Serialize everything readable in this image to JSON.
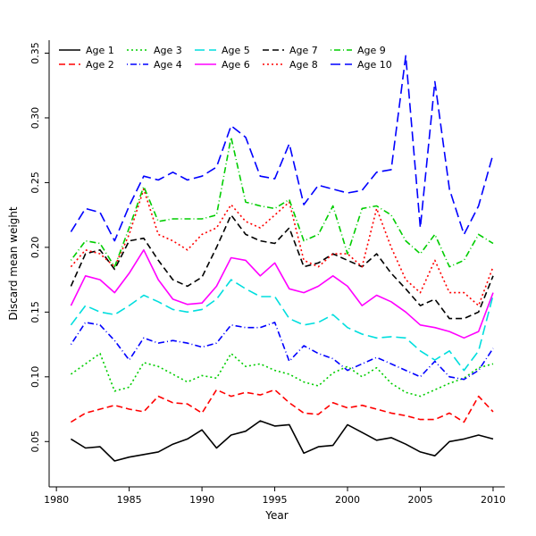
{
  "chart_data": {
    "type": "line",
    "xlabel": "Year",
    "ylabel": "Discard mean weight",
    "xlim": [
      1979.5,
      2010.8
    ],
    "ylim": [
      0.015,
      0.36
    ],
    "xticks": [
      1980,
      1985,
      1990,
      1995,
      2000,
      2005,
      2010
    ],
    "yticks": [
      0.05,
      0.1,
      0.15,
      0.2,
      0.25,
      0.3,
      0.35
    ],
    "legend_position": "top-left",
    "grid": false,
    "x": [
      1981,
      1982,
      1983,
      1984,
      1985,
      1986,
      1987,
      1988,
      1989,
      1990,
      1991,
      1992,
      1993,
      1994,
      1995,
      1996,
      1997,
      1998,
      1999,
      2000,
      2001,
      2002,
      2003,
      2004,
      2005,
      2006,
      2007,
      2008,
      2009,
      2010
    ],
    "series": [
      {
        "name": "Age 1",
        "color": "#000000",
        "dash": "",
        "values": [
          0.052,
          0.045,
          0.046,
          0.035,
          0.038,
          0.04,
          0.042,
          0.048,
          0.052,
          0.059,
          0.045,
          0.055,
          0.058,
          0.066,
          0.062,
          0.063,
          0.041,
          0.046,
          0.047,
          0.063,
          0.057,
          0.051,
          0.053,
          0.048,
          0.042,
          0.039,
          0.05,
          0.052,
          0.055,
          0.052
        ]
      },
      {
        "name": "Age 2",
        "color": "#ff0000",
        "dash": "7,4",
        "values": [
          0.065,
          0.072,
          0.075,
          0.078,
          0.075,
          0.073,
          0.085,
          0.08,
          0.079,
          0.072,
          0.09,
          0.085,
          0.088,
          0.086,
          0.09,
          0.08,
          0.072,
          0.071,
          0.08,
          0.076,
          0.078,
          0.075,
          0.072,
          0.07,
          0.067,
          0.067,
          0.072,
          0.065,
          0.085,
          0.073
        ]
      },
      {
        "name": "Age 3",
        "color": "#00cd00",
        "dash": "2,3",
        "values": [
          0.102,
          0.11,
          0.118,
          0.089,
          0.092,
          0.111,
          0.108,
          0.102,
          0.096,
          0.101,
          0.099,
          0.118,
          0.108,
          0.11,
          0.105,
          0.102,
          0.096,
          0.093,
          0.103,
          0.108,
          0.1,
          0.107,
          0.095,
          0.088,
          0.085,
          0.09,
          0.095,
          0.099,
          0.107,
          0.11
        ]
      },
      {
        "name": "Age 4",
        "color": "#0000ff",
        "dash": "1,3,7,3",
        "values": [
          0.125,
          0.142,
          0.14,
          0.128,
          0.113,
          0.13,
          0.126,
          0.128,
          0.126,
          0.123,
          0.126,
          0.14,
          0.138,
          0.138,
          0.142,
          0.112,
          0.124,
          0.118,
          0.114,
          0.105,
          0.11,
          0.115,
          0.11,
          0.105,
          0.1,
          0.112,
          0.1,
          0.098,
          0.105,
          0.122
        ]
      },
      {
        "name": "Age 5",
        "color": "#00dede",
        "dash": "11,5",
        "values": [
          0.14,
          0.155,
          0.15,
          0.148,
          0.155,
          0.163,
          0.158,
          0.152,
          0.15,
          0.152,
          0.16,
          0.175,
          0.168,
          0.162,
          0.162,
          0.145,
          0.14,
          0.142,
          0.148,
          0.138,
          0.133,
          0.13,
          0.131,
          0.13,
          0.12,
          0.113,
          0.12,
          0.105,
          0.12,
          0.163
        ]
      },
      {
        "name": "Age 6",
        "color": "#ff00ff",
        "dash": "",
        "values": [
          0.155,
          0.178,
          0.175,
          0.165,
          0.18,
          0.198,
          0.175,
          0.16,
          0.156,
          0.157,
          0.17,
          0.192,
          0.19,
          0.178,
          0.188,
          0.168,
          0.165,
          0.17,
          0.178,
          0.17,
          0.155,
          0.163,
          0.158,
          0.15,
          0.14,
          0.138,
          0.135,
          0.13,
          0.135,
          0.165
        ]
      },
      {
        "name": "Age 7",
        "color": "#000000",
        "dash": "7,4",
        "values": [
          0.17,
          0.195,
          0.198,
          0.183,
          0.205,
          0.207,
          0.19,
          0.175,
          0.17,
          0.177,
          0.2,
          0.225,
          0.21,
          0.205,
          0.203,
          0.215,
          0.185,
          0.188,
          0.195,
          0.19,
          0.185,
          0.195,
          0.18,
          0.168,
          0.155,
          0.16,
          0.145,
          0.145,
          0.15,
          0.178
        ]
      },
      {
        "name": "Age 8",
        "color": "#ff0000",
        "dash": "2,3",
        "values": [
          0.185,
          0.198,
          0.195,
          0.185,
          0.21,
          0.245,
          0.21,
          0.205,
          0.198,
          0.21,
          0.215,
          0.233,
          0.22,
          0.215,
          0.225,
          0.235,
          0.19,
          0.185,
          0.195,
          0.195,
          0.185,
          0.23,
          0.2,
          0.175,
          0.165,
          0.19,
          0.165,
          0.165,
          0.155,
          0.185
        ]
      },
      {
        "name": "Age 9",
        "color": "#00cd00",
        "dash": "1,3,7,3",
        "values": [
          0.19,
          0.205,
          0.203,
          0.185,
          0.215,
          0.247,
          0.22,
          0.222,
          0.222,
          0.222,
          0.225,
          0.285,
          0.235,
          0.232,
          0.23,
          0.237,
          0.205,
          0.21,
          0.232,
          0.195,
          0.23,
          0.232,
          0.225,
          0.205,
          0.195,
          0.21,
          0.185,
          0.19,
          0.21,
          0.203
        ]
      },
      {
        "name": "Age 10",
        "color": "#0000ff",
        "dash": "11,5",
        "values": [
          0.212,
          0.23,
          0.227,
          0.205,
          0.232,
          0.255,
          0.252,
          0.258,
          0.252,
          0.255,
          0.262,
          0.294,
          0.285,
          0.255,
          0.253,
          0.28,
          0.233,
          0.248,
          0.245,
          0.242,
          0.244,
          0.258,
          0.26,
          0.348,
          0.215,
          0.328,
          0.245,
          0.21,
          0.232,
          0.272
        ]
      }
    ]
  }
}
